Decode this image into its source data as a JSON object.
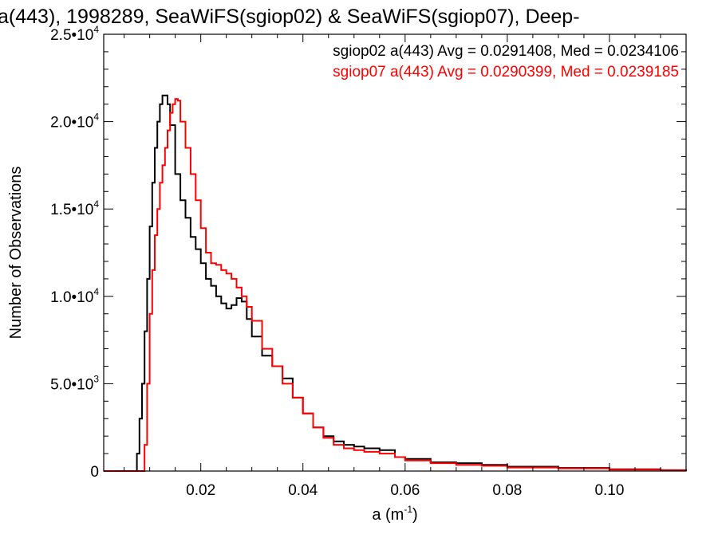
{
  "chart_data": {
    "type": "line",
    "step": true,
    "title": "a(443), 1998289, SeaWiFS(sgiop02) & SeaWiFS(sgiop07), Deep-",
    "xlabel": "a (m",
    "xlabel_exponent": "-1",
    "xlabel_suffix": ")",
    "ylabel": "Number of Observations",
    "xlim": [
      0.001,
      0.115
    ],
    "ylim": [
      0,
      25000
    ],
    "xticks": [
      {
        "value": 0.02,
        "label": "0.02"
      },
      {
        "value": 0.04,
        "label": "0.04"
      },
      {
        "value": 0.06,
        "label": "0.06"
      },
      {
        "value": 0.08,
        "label": "0.08"
      },
      {
        "value": 0.1,
        "label": "0.10"
      }
    ],
    "yticks": [
      {
        "value": 0,
        "mant": "0",
        "exp": ""
      },
      {
        "value": 5000,
        "mant": "5.0•10",
        "exp": "3"
      },
      {
        "value": 10000,
        "mant": "1.0•10",
        "exp": "4"
      },
      {
        "value": 15000,
        "mant": "1.5•10",
        "exp": "4"
      },
      {
        "value": 20000,
        "mant": "2.0•10",
        "exp": "4"
      },
      {
        "value": 25000,
        "mant": "2.5•10",
        "exp": "4"
      }
    ],
    "series": [
      {
        "name": "sgiop02 a(443) Avg = 0.0291408, Med = 0.0234106",
        "color": "#000000",
        "x": [
          0.001,
          0.007,
          0.0075,
          0.008,
          0.0085,
          0.009,
          0.0095,
          0.01,
          0.0105,
          0.011,
          0.0115,
          0.012,
          0.0125,
          0.013,
          0.0135,
          0.014,
          0.015,
          0.016,
          0.017,
          0.018,
          0.019,
          0.02,
          0.021,
          0.022,
          0.023,
          0.024,
          0.025,
          0.026,
          0.027,
          0.028,
          0.029,
          0.03,
          0.032,
          0.034,
          0.036,
          0.038,
          0.04,
          0.042,
          0.044,
          0.046,
          0.048,
          0.05,
          0.052,
          0.055,
          0.058,
          0.06,
          0.065,
          0.07,
          0.075,
          0.08,
          0.09,
          0.1,
          0.11,
          0.115
        ],
        "y": [
          0,
          0,
          1000,
          3000,
          5000,
          8000,
          11000,
          14000,
          16500,
          18500,
          20000,
          21000,
          21500,
          21500,
          21000,
          19800,
          17000,
          15500,
          14500,
          13400,
          12700,
          11900,
          11000,
          10600,
          10000,
          9600,
          9300,
          9500,
          9900,
          9700,
          8700,
          7700,
          6600,
          6000,
          5300,
          4200,
          3300,
          2500,
          2000,
          1700,
          1500,
          1400,
          1300,
          1200,
          800,
          700,
          500,
          450,
          350,
          250,
          180,
          100,
          50,
          0
        ]
      },
      {
        "name": "sgiop07 a(443) Avg = 0.0290399, Med = 0.0239185",
        "color": "#ff0000",
        "x": [
          0.001,
          0.0085,
          0.009,
          0.0095,
          0.01,
          0.0105,
          0.011,
          0.0115,
          0.012,
          0.0125,
          0.013,
          0.0135,
          0.014,
          0.0145,
          0.015,
          0.0155,
          0.016,
          0.017,
          0.018,
          0.019,
          0.02,
          0.021,
          0.022,
          0.023,
          0.024,
          0.025,
          0.026,
          0.027,
          0.028,
          0.029,
          0.03,
          0.032,
          0.034,
          0.036,
          0.038,
          0.04,
          0.042,
          0.044,
          0.046,
          0.048,
          0.05,
          0.052,
          0.055,
          0.058,
          0.06,
          0.065,
          0.07,
          0.075,
          0.08,
          0.09,
          0.1,
          0.11,
          0.115
        ],
        "y": [
          0,
          0,
          1500,
          5000,
          9000,
          11500,
          13500,
          15000,
          16500,
          17500,
          18500,
          19500,
          20500,
          21000,
          21300,
          21200,
          20000,
          18500,
          17000,
          15500,
          13900,
          12500,
          11900,
          11800,
          11500,
          11300,
          11000,
          10500,
          10000,
          9400,
          8600,
          7000,
          6000,
          5000,
          4200,
          3300,
          2500,
          1900,
          1500,
          1300,
          1200,
          1100,
          1000,
          800,
          600,
          450,
          350,
          300,
          200,
          150,
          80,
          30,
          0
        ]
      }
    ]
  }
}
